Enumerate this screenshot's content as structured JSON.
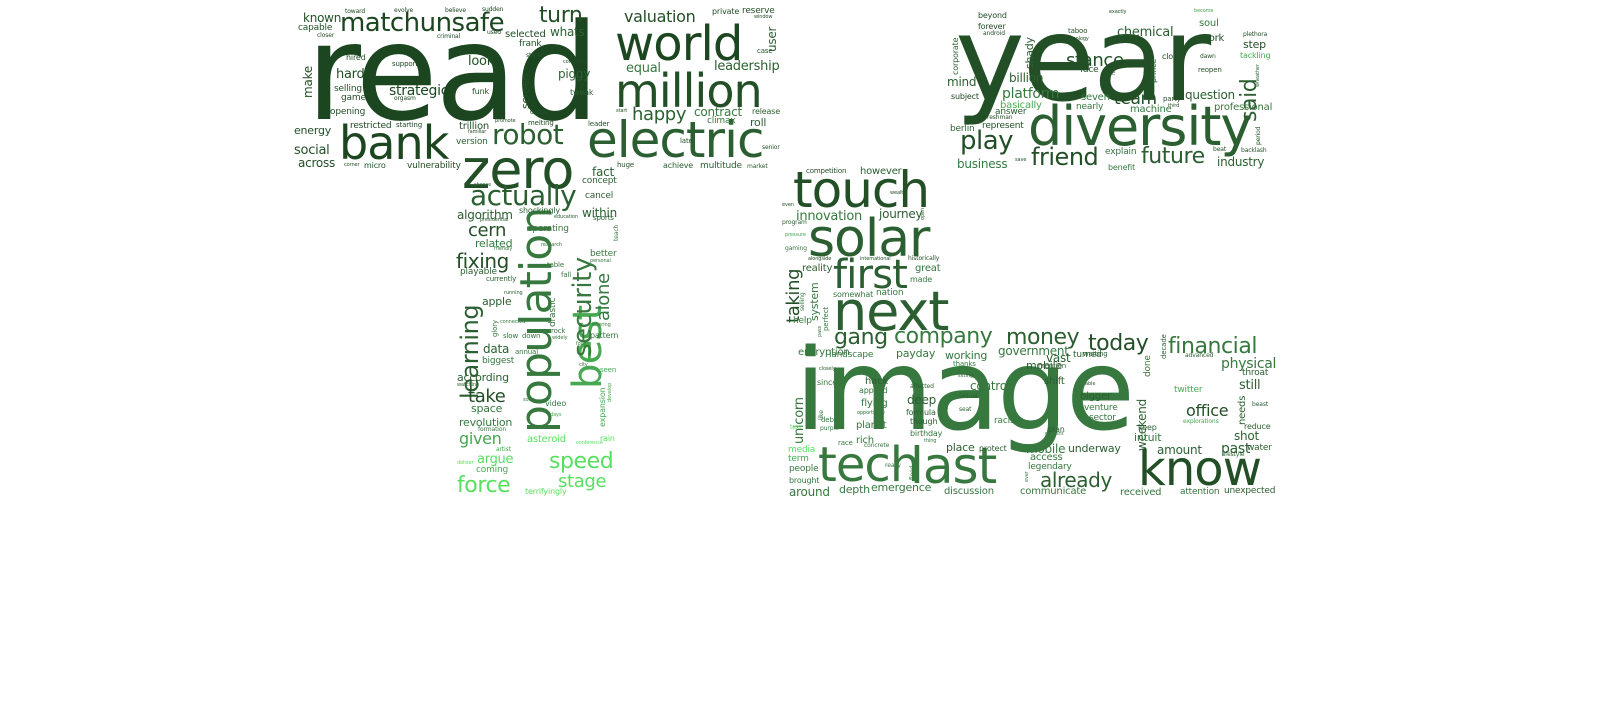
{
  "words": [
    {
      "text": "read",
      "tone": 0
    },
    {
      "text": "year",
      "tone": 1
    },
    {
      "text": "image",
      "tone": 3
    },
    {
      "text": "world",
      "tone": 0
    },
    {
      "text": "million",
      "tone": 1
    },
    {
      "text": "electric",
      "tone": 2
    },
    {
      "text": "zero",
      "tone": 1
    },
    {
      "text": "bank",
      "tone": 0
    },
    {
      "text": "matchunsafe",
      "tone": 0
    },
    {
      "text": "diversity",
      "tone": 2
    },
    {
      "text": "touch",
      "tone": 1
    },
    {
      "text": "solar",
      "tone": 2
    },
    {
      "text": "next",
      "tone": 2
    },
    {
      "text": "first",
      "tone": 2
    },
    {
      "text": "tech",
      "tone": 3
    },
    {
      "text": "last",
      "tone": 3
    },
    {
      "text": "know",
      "tone": 1
    },
    {
      "text": "population",
      "tone": 3
    },
    {
      "text": "best",
      "tone": 4
    },
    {
      "text": "security",
      "tone": 3
    },
    {
      "text": "actually",
      "tone": 2
    },
    {
      "text": "robot",
      "tone": 2
    },
    {
      "text": "turn",
      "tone": 1
    },
    {
      "text": "valuation",
      "tone": 1
    },
    {
      "text": "whats",
      "tone": 2
    },
    {
      "text": "happy",
      "tone": 2
    },
    {
      "text": "equal",
      "tone": 3
    },
    {
      "text": "leadership",
      "tone": 2
    },
    {
      "text": "contract",
      "tone": 3
    },
    {
      "text": "climax",
      "tone": 3
    },
    {
      "text": "roll",
      "tone": 2
    },
    {
      "text": "release",
      "tone": 2
    },
    {
      "text": "private",
      "tone": 1
    },
    {
      "text": "reserve",
      "tone": 1
    },
    {
      "text": "window",
      "tone": 1
    },
    {
      "text": "case",
      "tone": 1
    },
    {
      "text": "user",
      "tone": 2
    },
    {
      "text": "late",
      "tone": 1
    },
    {
      "text": "senior",
      "tone": 1
    },
    {
      "text": "achieve",
      "tone": 2
    },
    {
      "text": "multitude",
      "tone": 2
    },
    {
      "text": "market",
      "tone": 2
    },
    {
      "text": "huge",
      "tone": 1
    },
    {
      "text": "fact",
      "tone": 2
    },
    {
      "text": "concept",
      "tone": 2
    },
    {
      "text": "known",
      "tone": 1
    },
    {
      "text": "capable",
      "tone": 1
    },
    {
      "text": "closer",
      "tone": 1
    },
    {
      "text": "toward",
      "tone": 0
    },
    {
      "text": "evolve",
      "tone": 0
    },
    {
      "text": "believe",
      "tone": 0
    },
    {
      "text": "sudden",
      "tone": 0
    },
    {
      "text": "criminal",
      "tone": 0
    },
    {
      "text": "used",
      "tone": 0
    },
    {
      "text": "selected",
      "tone": 1
    },
    {
      "text": "frank",
      "tone": 1
    },
    {
      "text": "stated",
      "tone": 1
    },
    {
      "text": "make",
      "tone": 1
    },
    {
      "text": "hired",
      "tone": 1
    },
    {
      "text": "hard",
      "tone": 1
    },
    {
      "text": "selling",
      "tone": 1
    },
    {
      "text": "game",
      "tone": 1
    },
    {
      "text": "opening",
      "tone": 1
    },
    {
      "text": "support",
      "tone": 0
    },
    {
      "text": "strategic",
      "tone": 0
    },
    {
      "text": "orgasm",
      "tone": 0
    },
    {
      "text": "look",
      "tone": 1
    },
    {
      "text": "funk",
      "tone": 1
    },
    {
      "text": "screen",
      "tone": 1
    },
    {
      "text": "piggy",
      "tone": 2
    },
    {
      "text": "correcting",
      "tone": 1
    },
    {
      "text": "tweak",
      "tone": 2
    },
    {
      "text": "energy",
      "tone": 1
    },
    {
      "text": "restricted",
      "tone": 0
    },
    {
      "text": "starting",
      "tone": 0
    },
    {
      "text": "trillion",
      "tone": 1
    },
    {
      "text": "version",
      "tone": 2
    },
    {
      "text": "familiar",
      "tone": 1
    },
    {
      "text": "promote",
      "tone": 1
    },
    {
      "text": "death",
      "tone": 1
    },
    {
      "text": "melting",
      "tone": 1
    },
    {
      "text": "start",
      "tone": 1
    },
    {
      "text": "leader",
      "tone": 1
    },
    {
      "text": "social",
      "tone": 1
    },
    {
      "text": "across",
      "tone": 1
    },
    {
      "text": "corner",
      "tone": 1
    },
    {
      "text": "micro",
      "tone": 1
    },
    {
      "text": "vulnerability",
      "tone": 1
    },
    {
      "text": "choose",
      "tone": 2
    },
    {
      "text": "cancel",
      "tone": 2
    },
    {
      "text": "within",
      "tone": 2
    },
    {
      "text": "algorithm",
      "tone": 2
    },
    {
      "text": "shockingly",
      "tone": 2
    },
    {
      "text": "education",
      "tone": 2
    },
    {
      "text": "sports",
      "tone": 2
    },
    {
      "text": "cern",
      "tone": 1
    },
    {
      "text": "presidential",
      "tone": 2
    },
    {
      "text": "operating",
      "tone": 3
    },
    {
      "text": "teach",
      "tone": 3
    },
    {
      "text": "related",
      "tone": 3
    },
    {
      "text": "research",
      "tone": 3
    },
    {
      "text": "better",
      "tone": 3
    },
    {
      "text": "friendly",
      "tone": 3
    },
    {
      "text": "personal",
      "tone": 3
    },
    {
      "text": "fixing",
      "tone": 1
    },
    {
      "text": "table",
      "tone": 3
    },
    {
      "text": "fall",
      "tone": 3
    },
    {
      "text": "alone",
      "tone": 3
    },
    {
      "text": "playable",
      "tone": 2
    },
    {
      "text": "currently",
      "tone": 2
    },
    {
      "text": "running",
      "tone": 2
    },
    {
      "text": "apple",
      "tone": 2
    },
    {
      "text": "learning",
      "tone": 2
    },
    {
      "text": "drastic",
      "tone": 3
    },
    {
      "text": "glory",
      "tone": 3
    },
    {
      "text": "connected",
      "tone": 3
    },
    {
      "text": "offering",
      "tone": 3
    },
    {
      "text": "rock",
      "tone": 3
    },
    {
      "text": "widely",
      "tone": 3
    },
    {
      "text": "slow",
      "tone": 3
    },
    {
      "text": "down",
      "tone": 3
    },
    {
      "text": "pattern",
      "tone": 3
    },
    {
      "text": "four",
      "tone": 3
    },
    {
      "text": "data",
      "tone": 2
    },
    {
      "text": "annual",
      "tone": 3
    },
    {
      "text": "biggest",
      "tone": 3
    },
    {
      "text": "city",
      "tone": 3
    },
    {
      "text": "seen",
      "tone": 4
    },
    {
      "text": "according",
      "tone": 2
    },
    {
      "text": "watching",
      "tone": 2
    },
    {
      "text": "take",
      "tone": 1
    },
    {
      "text": "space",
      "tone": 3
    },
    {
      "text": "soon",
      "tone": 3
    },
    {
      "text": "video",
      "tone": 3
    },
    {
      "text": "expansion",
      "tone": 4
    },
    {
      "text": "develop",
      "tone": 4
    },
    {
      "text": "days",
      "tone": 4
    },
    {
      "text": "revolution",
      "tone": 3
    },
    {
      "text": "formation",
      "tone": 3
    },
    {
      "text": "given",
      "tone": 4
    },
    {
      "text": "asteroid",
      "tone": 5
    },
    {
      "text": "rain",
      "tone": 5
    },
    {
      "text": "artist",
      "tone": 4
    },
    {
      "text": "conference",
      "tone": 5
    },
    {
      "text": "argue",
      "tone": 5
    },
    {
      "text": "deliver",
      "tone": 5
    },
    {
      "text": "coming",
      "tone": 4
    },
    {
      "text": "speed",
      "tone": 5
    },
    {
      "text": "force",
      "tone": 5
    },
    {
      "text": "stage",
      "tone": 5
    },
    {
      "text": "terrifyingly",
      "tone": 5
    },
    {
      "text": "beyond",
      "tone": 1
    },
    {
      "text": "forever",
      "tone": 1
    },
    {
      "text": "android",
      "tone": 1
    },
    {
      "text": "corporate",
      "tone": 2
    },
    {
      "text": "mind",
      "tone": 2
    },
    {
      "text": "billion",
      "tone": 2
    },
    {
      "text": "shady",
      "tone": 2
    },
    {
      "text": "exactly",
      "tone": 1
    },
    {
      "text": "taboo",
      "tone": 1
    },
    {
      "text": "technology",
      "tone": 1
    },
    {
      "text": "chemical",
      "tone": 2
    },
    {
      "text": "become",
      "tone": 4
    },
    {
      "text": "soul",
      "tone": 3
    },
    {
      "text": "york",
      "tone": 1
    },
    {
      "text": "plethora",
      "tone": 1
    },
    {
      "text": "step",
      "tone": 1
    },
    {
      "text": "tackling",
      "tone": 4
    },
    {
      "text": "stance",
      "tone": 1
    },
    {
      "text": "face",
      "tone": 1
    },
    {
      "text": "high",
      "tone": 1
    },
    {
      "text": "prince",
      "tone": 2
    },
    {
      "text": "close",
      "tone": 1
    },
    {
      "text": "dawn",
      "tone": 1
    },
    {
      "text": "reopen",
      "tone": 1
    },
    {
      "text": "said",
      "tone": 2
    },
    {
      "text": "wheather",
      "tone": 2
    },
    {
      "text": "subject",
      "tone": 0
    },
    {
      "text": "platform",
      "tone": 3
    },
    {
      "text": "seven",
      "tone": 3
    },
    {
      "text": "team",
      "tone": 1
    },
    {
      "text": "party",
      "tone": 1
    },
    {
      "text": "third",
      "tone": 1
    },
    {
      "text": "question",
      "tone": 2
    },
    {
      "text": "basically",
      "tone": 4
    },
    {
      "text": "nearly",
      "tone": 3
    },
    {
      "text": "machine",
      "tone": 3
    },
    {
      "text": "professional",
      "tone": 3
    },
    {
      "text": "berlin",
      "tone": 2
    },
    {
      "text": "answer",
      "tone": 2
    },
    {
      "text": "represent",
      "tone": 1
    },
    {
      "text": "freshman",
      "tone": 1
    },
    {
      "text": "period",
      "tone": 1
    },
    {
      "text": "play",
      "tone": 1
    },
    {
      "text": "beat",
      "tone": 1
    },
    {
      "text": "backlash",
      "tone": 1
    },
    {
      "text": "save",
      "tone": 1
    },
    {
      "text": "friend",
      "tone": 1
    },
    {
      "text": "explain",
      "tone": 3
    },
    {
      "text": "future",
      "tone": 2
    },
    {
      "text": "industry",
      "tone": 2
    },
    {
      "text": "business",
      "tone": 3
    },
    {
      "text": "benefit",
      "tone": 3
    },
    {
      "text": "competition",
      "tone": 1
    },
    {
      "text": "however",
      "tone": 2
    },
    {
      "text": "wealth",
      "tone": 1
    },
    {
      "text": "even",
      "tone": 1
    },
    {
      "text": "open",
      "tone": 2
    },
    {
      "text": "innovation",
      "tone": 3
    },
    {
      "text": "journey",
      "tone": 2
    },
    {
      "text": "program",
      "tone": 2
    },
    {
      "text": "pressure",
      "tone": 4
    },
    {
      "text": "gaming",
      "tone": 3
    },
    {
      "text": "alongside",
      "tone": 1
    },
    {
      "text": "international",
      "tone": 1
    },
    {
      "text": "historically",
      "tone": 1
    },
    {
      "text": "taking",
      "tone": 1
    },
    {
      "text": "reality",
      "tone": 2
    },
    {
      "text": "great",
      "tone": 3
    },
    {
      "text": "made",
      "tone": 3
    },
    {
      "text": "selling",
      "tone": 3
    },
    {
      "text": "system",
      "tone": 3
    },
    {
      "text": "somewhat",
      "tone": 3
    },
    {
      "text": "nation",
      "tone": 3
    },
    {
      "text": "perfect",
      "tone": 3
    },
    {
      "text": "pass",
      "tone": 3
    },
    {
      "text": "help",
      "tone": 3
    },
    {
      "text": "gang",
      "tone": 2
    },
    {
      "text": "company",
      "tone": 3
    },
    {
      "text": "money",
      "tone": 2
    },
    {
      "text": "today",
      "tone": 1
    },
    {
      "text": "financial",
      "tone": 3
    },
    {
      "text": "encryption",
      "tone": 3
    },
    {
      "text": "landscape",
      "tone": 3
    },
    {
      "text": "payday",
      "tone": 3
    },
    {
      "text": "working",
      "tone": 3
    },
    {
      "text": "government",
      "tone": 3
    },
    {
      "text": "turned",
      "tone": 2
    },
    {
      "text": "waiting",
      "tone": 2
    },
    {
      "text": "decade",
      "tone": 2
    },
    {
      "text": "advanced",
      "tone": 2
    },
    {
      "text": "physical",
      "tone": 3
    },
    {
      "text": "thanks",
      "tone": 3
    },
    {
      "text": "mobile",
      "tone": 2
    },
    {
      "text": "mention",
      "tone": 2
    },
    {
      "text": "closely",
      "tone": 2
    },
    {
      "text": "sitting",
      "tone": 2
    },
    {
      "text": "vast",
      "tone": 2
    },
    {
      "text": "done",
      "tone": 3
    },
    {
      "text": "throat",
      "tone": 2
    },
    {
      "text": "since",
      "tone": 3
    },
    {
      "text": "hack",
      "tone": 2
    },
    {
      "text": "affected",
      "tone": 2
    },
    {
      "text": "control",
      "tone": 3
    },
    {
      "text": "shift",
      "tone": 2
    },
    {
      "text": "able",
      "tone": 2
    },
    {
      "text": "still",
      "tone": 2
    },
    {
      "text": "unicorn",
      "tone": 3
    },
    {
      "text": "applied",
      "tone": 3
    },
    {
      "text": "virtual",
      "tone": 2
    },
    {
      "text": "bigger",
      "tone": 2
    },
    {
      "text": "twitter",
      "tone": 4
    },
    {
      "text": "needs",
      "tone": 2
    },
    {
      "text": "deep",
      "tone": 2
    },
    {
      "text": "flying",
      "tone": 3
    },
    {
      "text": "formula",
      "tone": 2
    },
    {
      "text": "seat",
      "tone": 2
    },
    {
      "text": "type",
      "tone": 3
    },
    {
      "text": "venture",
      "tone": 3
    },
    {
      "text": "weekend",
      "tone": 2
    },
    {
      "text": "office",
      "tone": 1
    },
    {
      "text": "beast",
      "tone": 2
    },
    {
      "text": "like",
      "tone": 3
    },
    {
      "text": "debut",
      "tone": 3
    },
    {
      "text": "opportunity",
      "tone": 3
    },
    {
      "text": "racism",
      "tone": 3
    },
    {
      "text": "sector",
      "tone": 3
    },
    {
      "text": "explorations",
      "tone": 4
    },
    {
      "text": "reduce",
      "tone": 2
    },
    {
      "text": "text",
      "tone": 5
    },
    {
      "text": "purple",
      "tone": 3
    },
    {
      "text": "planet",
      "tone": 3
    },
    {
      "text": "though",
      "tone": 2
    },
    {
      "text": "plan",
      "tone": 2
    },
    {
      "text": "keep",
      "tone": 2
    },
    {
      "text": "intuit",
      "tone": 3
    },
    {
      "text": "birthday",
      "tone": 3
    },
    {
      "text": "content",
      "tone": 3
    },
    {
      "text": "shot",
      "tone": 2
    },
    {
      "text": "race",
      "tone": 3
    },
    {
      "text": "rich",
      "tone": 3
    },
    {
      "text": "concrete",
      "tone": 3
    },
    {
      "text": "thing",
      "tone": 3
    },
    {
      "text": "place",
      "tone": 2
    },
    {
      "text": "protect",
      "tone": 2
    },
    {
      "text": "mobile",
      "tone": 3
    },
    {
      "text": "underway",
      "tone": 2
    },
    {
      "text": "amount",
      "tone": 2
    },
    {
      "text": "past",
      "tone": 2
    },
    {
      "text": "water",
      "tone": 2
    },
    {
      "text": "lifestyle",
      "tone": 2
    },
    {
      "text": "media",
      "tone": 5
    },
    {
      "text": "term",
      "tone": 4
    },
    {
      "text": "people",
      "tone": 3
    },
    {
      "text": "brought",
      "tone": 3
    },
    {
      "text": "really",
      "tone": 3
    },
    {
      "text": "flood",
      "tone": 3
    },
    {
      "text": "access",
      "tone": 3
    },
    {
      "text": "legendary",
      "tone": 3
    },
    {
      "text": "ever",
      "tone": 3
    },
    {
      "text": "already",
      "tone": 2
    },
    {
      "text": "around",
      "tone": 3
    },
    {
      "text": "depth",
      "tone": 3
    },
    {
      "text": "emergence",
      "tone": 3
    },
    {
      "text": "discussion",
      "tone": 3
    },
    {
      "text": "communicate",
      "tone": 3
    },
    {
      "text": "received",
      "tone": 3
    },
    {
      "text": "attention",
      "tone": 3
    },
    {
      "text": "unexpected",
      "tone": 2
    }
  ],
  "palette": [
    "#1c4620",
    "#234f27",
    "#2b5f31",
    "#37783f",
    "#46a850",
    "#57e060"
  ]
}
